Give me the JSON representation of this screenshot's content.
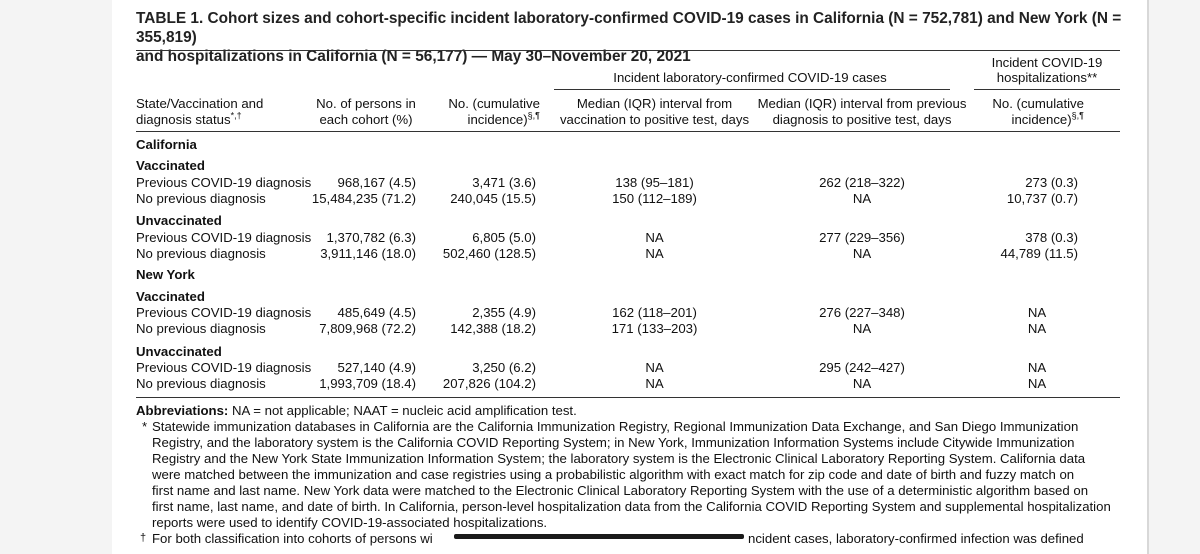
{
  "title": {
    "line1": "TABLE 1. Cohort sizes and cohort-specific incident laboratory-confirmed COVID-19 cases in California (N = 752,781) and New York (N = 355,819)",
    "line2": "and hospitalizations in California (N = 56,177) — May 30–November 20, 2021"
  },
  "headers": {
    "group_cases": "Incident laboratory-confirmed COVID-19 cases",
    "group_hosp_1": "Incident COVID-19",
    "group_hosp_2": "hospitalizations**",
    "col1_1": "State/Vaccination and",
    "col1_2": "diagnosis status",
    "col1_sup": "*,†",
    "col2_1": "No. of persons in",
    "col2_2": "each cohort (%)",
    "col3_1": "No. (cumulative",
    "col3_2": "incidence)",
    "col3_sup": "§,¶",
    "col4_1": "Median (IQR) interval from",
    "col4_2": "vaccination to positive test, days",
    "col5_1": "Median (IQR) interval from previous",
    "col5_2": "diagnosis to positive test, days",
    "col6_1": "No. (cumulative",
    "col6_2": "incidence)",
    "col6_sup": "§,¶"
  },
  "sections": {
    "ca": "California",
    "ca_vax": "Vaccinated",
    "ca_unvax": "Unvaccinated",
    "ny": "New York",
    "ny_vax": "Vaccinated",
    "ny_unvax": "Unvaccinated"
  },
  "rows": [
    [
      "Previous COVID-19 diagnosis",
      "968,167 (4.5)",
      "3,471 (3.6)",
      "138 (95–181)",
      "262 (218–322)",
      "273 (0.3)"
    ],
    [
      "No previous diagnosis",
      "15,484,235 (71.2)",
      "240,045 (15.5)",
      "150 (112–189)",
      "NA",
      "10,737 (0.7)"
    ],
    [
      "Previous COVID-19 diagnosis",
      "1,370,782 (6.3)",
      "6,805 (5.0)",
      "NA",
      "277 (229–356)",
      "378 (0.3)"
    ],
    [
      "No previous diagnosis",
      "3,911,146 (18.0)",
      "502,460 (128.5)",
      "NA",
      "NA",
      "44,789 (11.5)"
    ],
    [
      "Previous COVID-19 diagnosis",
      "485,649 (4.5)",
      "2,355 (4.9)",
      "162 (118–201)",
      "276 (227–348)",
      "NA"
    ],
    [
      "No previous diagnosis",
      "7,809,968 (72.2)",
      "142,388 (18.2)",
      "171 (133–203)",
      "NA",
      "NA"
    ],
    [
      "Previous COVID-19 diagnosis",
      "527,140 (4.9)",
      "3,250 (6.2)",
      "NA",
      "295 (242–427)",
      "NA"
    ],
    [
      "No previous diagnosis",
      "1,993,709 (18.4)",
      "207,826 (104.2)",
      "NA",
      "NA",
      "NA"
    ]
  ],
  "footnotes": {
    "abbr_label": "Abbreviations:",
    "abbr_text": " NA = not applicable; NAAT = nucleic acid amplification test.",
    "star_mark": "*",
    "star_lines": [
      "Statewide immunization databases in California are the California Immunization Registry, Regional Immunization Data Exchange, and San Diego Immunization",
      "Registry, and the laboratory system is the California COVID Reporting System; in New York, Immunization Information Systems include Citywide Immunization",
      "Registry and the New York State Immunization Information System; the laboratory system is the Electronic Clinical Laboratory Reporting System. California data",
      "were matched between the immunization and case registries using a probabilistic algorithm with exact match for zip code and date of birth and fuzzy match on",
      "first name and last name. New York data were matched to the Electronic Clinical Laboratory Reporting System with the use of a deterministic algorithm based on",
      "first name, last name, and date of birth. In California, person-level hospitalization data from the California COVID Reporting System and supplemental hospitalization",
      "reports were used to identify COVID-19-associated hospitalizations."
    ],
    "dagger_mark": "†",
    "dagger_a": "For both classification into cohorts of persons wi",
    "dagger_b": "ncident cases, laboratory-confirmed infection was defined"
  }
}
